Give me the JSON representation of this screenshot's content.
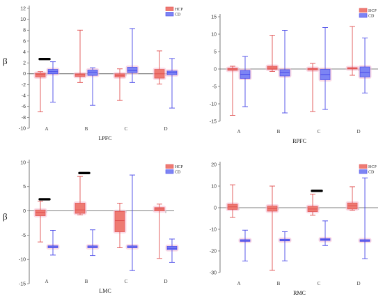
{
  "colors": {
    "HCP": "#e05050",
    "CD": "#4848e8",
    "HCP_fill": "#ee7a72",
    "CD_fill": "#7c84f4",
    "halo": "#f6c2d6",
    "axis": "#555555"
  },
  "chart_data": [
    {
      "type": "box",
      "title": "LPFC",
      "ylabel": "β",
      "ylim": [
        -10,
        12
      ],
      "yticks": [
        -10,
        -8,
        -6,
        -4,
        -2,
        0,
        2,
        4,
        6,
        8,
        10,
        12
      ],
      "categories": [
        "A",
        "B",
        "C",
        "D"
      ],
      "legend": {
        "position": "top-right",
        "entries": [
          "HCP",
          "CD"
        ]
      },
      "series": [
        {
          "name": "HCP",
          "boxes": [
            {
              "min": -7.0,
              "q1": -0.6,
              "median": -0.1,
              "q3": 0.1,
              "max": 0.4
            },
            {
              "min": -1.6,
              "q1": -0.5,
              "median": -0.1,
              "q3": 0.0,
              "max": 8.0
            },
            {
              "min": -4.9,
              "q1": -0.6,
              "median": -0.3,
              "q3": 0.0,
              "max": 0.9
            },
            {
              "min": -1.9,
              "q1": -0.8,
              "median": 0.0,
              "q3": 0.8,
              "max": 4.2
            }
          ]
        },
        {
          "name": "CD",
          "boxes": [
            {
              "min": -5.2,
              "q1": 0.0,
              "median": 0.4,
              "q3": 0.8,
              "max": 2.2
            },
            {
              "min": -5.8,
              "q1": -0.3,
              "median": 0.3,
              "q3": 0.7,
              "max": 1.1
            },
            {
              "min": -1.6,
              "q1": 0.2,
              "median": 0.6,
              "q3": 1.2,
              "max": 8.3
            },
            {
              "min": -6.3,
              "q1": -0.2,
              "median": 0.2,
              "q3": 0.5,
              "max": 2.8
            }
          ]
        }
      ],
      "markers": [
        {
          "category": "A",
          "y": 2.7
        }
      ]
    },
    {
      "type": "box",
      "title": "RPFC",
      "ylabel": "",
      "ylim": [
        -15,
        15
      ],
      "yticks": [
        -15,
        -10,
        -5,
        0,
        5,
        10,
        15
      ],
      "categories": [
        "A",
        "B",
        "C",
        "D"
      ],
      "legend": {
        "position": "top-right",
        "entries": [
          "HCP",
          "CD"
        ]
      },
      "series": [
        {
          "name": "HCP",
          "boxes": [
            {
              "min": -13.3,
              "q1": -0.4,
              "median": 0.0,
              "q3": 0.2,
              "max": 0.8
            },
            {
              "min": -0.7,
              "q1": -0.1,
              "median": 0.2,
              "q3": 0.8,
              "max": 9.7
            },
            {
              "min": -12.2,
              "q1": -0.3,
              "median": 0.0,
              "q3": 0.2,
              "max": 1.6
            },
            {
              "min": -1.8,
              "q1": 0.0,
              "median": 0.2,
              "q3": 0.4,
              "max": 12.2
            }
          ]
        },
        {
          "name": "CD",
          "boxes": [
            {
              "min": -10.8,
              "q1": -2.7,
              "median": -1.5,
              "q3": -0.4,
              "max": 3.6
            },
            {
              "min": -12.6,
              "q1": -2.0,
              "median": -1.0,
              "q3": -0.2,
              "max": 11.1
            },
            {
              "min": -11.6,
              "q1": -3.1,
              "median": -1.6,
              "q3": -0.1,
              "max": 11.9
            },
            {
              "min": -6.9,
              "q1": -2.3,
              "median": -1.0,
              "q3": 0.6,
              "max": 8.9
            }
          ]
        }
      ],
      "markers": []
    },
    {
      "type": "box",
      "title": "LMC",
      "ylabel": "β",
      "ylim": [
        -15,
        10
      ],
      "yticks": [
        -15,
        -10,
        -5,
        0,
        5,
        10
      ],
      "categories": [
        "A",
        "B",
        "C",
        "D"
      ],
      "legend": {
        "position": "top-right",
        "entries": [
          "HCP",
          "CD"
        ]
      },
      "series": [
        {
          "name": "HCP",
          "boxes": [
            {
              "min": -6.4,
              "q1": -1.0,
              "median": -0.3,
              "q3": 0.2,
              "max": 2.0
            },
            {
              "min": -0.8,
              "q1": -0.5,
              "median": 0.2,
              "q3": 1.6,
              "max": 7.1
            },
            {
              "min": -7.6,
              "q1": -4.3,
              "median": -2.0,
              "q3": -0.1,
              "max": 1.6
            },
            {
              "min": -9.8,
              "q1": 0.0,
              "median": 0.4,
              "q3": 0.7,
              "max": 1.4
            }
          ]
        },
        {
          "name": "CD",
          "boxes": [
            {
              "min": -9.1,
              "q1": -7.6,
              "median": -7.4,
              "q3": -7.2,
              "max": -4.0
            },
            {
              "min": -9.2,
              "q1": -7.6,
              "median": -7.4,
              "q3": -7.2,
              "max": -3.9
            },
            {
              "min": -12.3,
              "q1": -7.6,
              "median": -7.4,
              "q3": -7.2,
              "max": 7.4
            },
            {
              "min": -10.6,
              "q1": -8.0,
              "median": -7.7,
              "q3": -7.3,
              "max": -5.8
            }
          ]
        }
      ],
      "markers": [
        {
          "category": "A",
          "y": 2.4
        },
        {
          "category": "B",
          "y": 7.8
        }
      ]
    },
    {
      "type": "box",
      "title": "RMC",
      "ylabel": "",
      "ylim": [
        -30,
        20
      ],
      "yticks": [
        -30,
        -20,
        -10,
        0,
        10,
        20
      ],
      "categories": [
        "A",
        "B",
        "C",
        "D"
      ],
      "legend": {
        "position": "top-right",
        "entries": [
          "HCP",
          "CD"
        ]
      },
      "series": [
        {
          "name": "HCP",
          "boxes": [
            {
              "min": -4.5,
              "q1": -0.8,
              "median": 0.4,
              "q3": 1.6,
              "max": 10.6
            },
            {
              "min": -29.0,
              "q1": -1.6,
              "median": -0.4,
              "q3": 0.8,
              "max": 10.0
            },
            {
              "min": -3.5,
              "q1": -1.8,
              "median": -0.6,
              "q3": 0.6,
              "max": 6.3
            },
            {
              "min": -1.2,
              "q1": -0.6,
              "median": 0.9,
              "q3": 2.2,
              "max": 9.7
            }
          ]
        },
        {
          "name": "CD",
          "boxes": [
            {
              "min": -24.7,
              "q1": -15.6,
              "median": -15.2,
              "q3": -14.8,
              "max": -10.4
            },
            {
              "min": -24.6,
              "q1": -15.4,
              "median": -15.0,
              "q3": -14.6,
              "max": -11.1
            },
            {
              "min": -17.5,
              "q1": -15.2,
              "median": -14.7,
              "q3": -14.3,
              "max": -6.1
            },
            {
              "min": -23.6,
              "q1": -15.6,
              "median": -15.2,
              "q3": -14.8,
              "max": 13.8
            }
          ]
        }
      ],
      "markers": [
        {
          "category": "C",
          "y": 7.8
        }
      ]
    }
  ]
}
